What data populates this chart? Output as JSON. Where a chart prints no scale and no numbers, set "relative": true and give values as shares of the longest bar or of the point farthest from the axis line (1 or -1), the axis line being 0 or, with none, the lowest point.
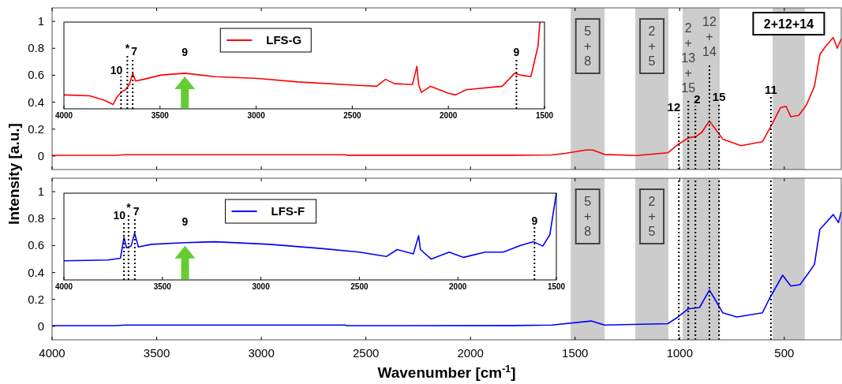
{
  "chart_data": [
    {
      "type": "line",
      "ylabel": "Intensity [a.u.]",
      "xlim": [
        4000,
        228
      ],
      "xticks": [
        4000,
        3500,
        3000,
        2500,
        2000,
        1500,
        1000,
        500
      ],
      "ylim": [
        -0.1,
        1.1
      ],
      "yticks": [
        0,
        0.2,
        0.4,
        0.6,
        0.8,
        1
      ],
      "tick_labels": "y",
      "grid": false,
      "legend": false,
      "series": [
        {
          "color": "#ff0000",
          "x": [
            4000,
            3700,
            3650,
            2600,
            2590,
            1800,
            1611,
            1547,
            1449,
            1415,
            1359,
            1208,
            1057,
            1008,
            959,
            922,
            895,
            858,
            831,
            794,
            707,
            605,
            567,
            518,
            492,
            469,
            431,
            394,
            356,
            330,
            304,
            266,
            247,
            228
          ],
          "values": [
            0.005,
            0.005,
            0.01,
            0.01,
            0.006,
            0.006,
            0.008,
            0.02,
            0.045,
            0.045,
            0.012,
            0.004,
            0.024,
            0.086,
            0.135,
            0.145,
            0.175,
            0.26,
            0.204,
            0.126,
            0.077,
            0.106,
            0.213,
            0.36,
            0.37,
            0.292,
            0.302,
            0.38,
            0.518,
            0.753,
            0.812,
            0.88,
            0.8,
            0.87
          ]
        }
      ],
      "bands": [
        {
          "axis": "x",
          "from": 1521,
          "to": 1359,
          "label": "5+8",
          "color": "#cccccc"
        },
        {
          "axis": "x",
          "from": 1212,
          "to": 1054,
          "label": "2+5",
          "color": "#cccccc"
        },
        {
          "axis": "x",
          "from": 986,
          "to": 809,
          "label": null,
          "color": "#cccccc"
        },
        {
          "axis": "x",
          "from": 556,
          "to": 402,
          "label": "2+12+14",
          "color": "#cccccc"
        }
      ],
      "ref_lines": [
        {
          "axis": "x",
          "value": 1004,
          "line_style": "dotted"
        },
        {
          "axis": "x",
          "value": 959,
          "line_style": "dotted"
        },
        {
          "axis": "x",
          "value": 925,
          "line_style": "dotted"
        },
        {
          "axis": "x",
          "value": 858,
          "line_style": "dotted"
        },
        {
          "axis": "x",
          "value": 812,
          "line_style": "dotted"
        },
        {
          "axis": "x",
          "value": 564,
          "line_style": "dotted"
        }
      ],
      "annotations": [
        {
          "text": "12",
          "x": 1004,
          "y": 0.08
        },
        {
          "text": "2+13+15",
          "x": 959,
          "y": 0.41
        },
        {
          "text": "2",
          "x": 925,
          "y": 0.14
        },
        {
          "text": "12+14",
          "x": 858,
          "y": 0.68
        },
        {
          "text": "15",
          "x": 812,
          "y": 0.16
        },
        {
          "text": "11",
          "x": 564,
          "y": 0.21
        }
      ]
    },
    {
      "type": "line",
      "relative": true,
      "xlim": [
        4000,
        1500
      ],
      "xticks": [
        4000,
        3500,
        3000,
        2500,
        2000,
        1500
      ],
      "tick_labels": "x",
      "legend": "top",
      "series": [
        {
          "name": "LFS-G",
          "color": "#ff0000",
          "x": [
            4000,
            3866,
            3791,
            3744,
            3726,
            3698,
            3679,
            3660,
            3642,
            3627,
            3586,
            3493,
            3371,
            3213,
            2989,
            2784,
            2466,
            2373,
            2327,
            2280,
            2187,
            2164,
            2155,
            2140,
            2093,
            2000,
            1963,
            1907,
            1720,
            1655,
            1627,
            1571,
            1534,
            1524
          ],
          "values": [
            0.16,
            0.15,
            0.1,
            0.05,
            0.13,
            0.2,
            0.22,
            0.28,
            0.41,
            0.32,
            0.34,
            0.39,
            0.41,
            0.37,
            0.35,
            0.31,
            0.27,
            0.26,
            0.34,
            0.29,
            0.28,
            0.49,
            0.28,
            0.19,
            0.26,
            0.18,
            0.16,
            0.22,
            0.26,
            0.41,
            0.39,
            0.37,
            0.72,
            1
          ]
        }
      ],
      "ref_lines": [
        {
          "axis": "x",
          "value": 3703,
          "line_style": "dotted"
        },
        {
          "axis": "x",
          "value": 3670,
          "line_style": "dotted"
        },
        {
          "axis": "x",
          "value": 3642,
          "line_style": "dotted"
        },
        {
          "axis": "x",
          "value": 1646,
          "line_style": "dotted"
        }
      ],
      "annotations": [
        {
          "text": "10",
          "x": 3703,
          "y": 0.19
        },
        {
          "text": "*",
          "x": 3670,
          "y": 0.25
        },
        {
          "text": "7",
          "x": 3642,
          "y": 0.41
        },
        {
          "text": "9",
          "x": 1646,
          "y": 0.4
        },
        {
          "text": "9",
          "x": 3371,
          "y": 0.41
        }
      ]
    },
    {
      "type": "line",
      "xlabel": "Wavenumber [cm$^{-1}$]",
      "xlim": [
        4000,
        228
      ],
      "xticks": [
        4000,
        3500,
        3000,
        2500,
        2000,
        1500,
        1000,
        500
      ],
      "ylim": [
        -0.1,
        1.1
      ],
      "yticks": [
        0,
        0.2,
        0.4,
        0.6,
        0.8,
        1
      ],
      "grid": false,
      "legend": false,
      "series": [
        {
          "color": "#0000ff",
          "x": [
            4000,
            3700,
            3650,
            2600,
            2590,
            1800,
            1611,
            1423,
            1359,
            1057,
            1008,
            959,
            905,
            858,
            831,
            794,
            727,
            605,
            573,
            508,
            469,
            425,
            387,
            356,
            330,
            266,
            241,
            228
          ],
          "values": [
            0.005,
            0.005,
            0.01,
            0.01,
            0.005,
            0.006,
            0.01,
            0.04,
            0.01,
            0.02,
            0.07,
            0.13,
            0.14,
            0.27,
            0.2,
            0.1,
            0.07,
            0.1,
            0.2,
            0.38,
            0.3,
            0.31,
            0.39,
            0.46,
            0.72,
            0.83,
            0.77,
            0.85
          ]
        }
      ],
      "bands": [
        {
          "axis": "x",
          "from": 1521,
          "to": 1359,
          "label": "5+8",
          "color": "#cccccc"
        },
        {
          "axis": "x",
          "from": 1212,
          "to": 1054,
          "label": "2+5",
          "color": "#cccccc"
        },
        {
          "axis": "x",
          "from": 986,
          "to": 809,
          "label": null,
          "color": "#cccccc"
        },
        {
          "axis": "x",
          "from": 556,
          "to": 402,
          "label": null,
          "color": "#cccccc"
        }
      ],
      "ref_lines": [
        {
          "axis": "x",
          "value": 1004,
          "line_style": "dotted"
        },
        {
          "axis": "x",
          "value": 959,
          "line_style": "dotted"
        },
        {
          "axis": "x",
          "value": 925,
          "line_style": "dotted"
        },
        {
          "axis": "x",
          "value": 858,
          "line_style": "dotted"
        },
        {
          "axis": "x",
          "value": 812,
          "line_style": "dotted"
        },
        {
          "axis": "x",
          "value": 564,
          "line_style": "dotted"
        }
      ]
    },
    {
      "type": "line",
      "relative": true,
      "xlim": [
        4000,
        1500
      ],
      "xticks": [
        4000,
        3500,
        3000,
        2500,
        2000,
        1500
      ],
      "tick_labels": "x",
      "legend": "top",
      "series": [
        {
          "name": "LFS-F",
          "color": "#0000ff",
          "x": [
            4000,
            3777,
            3713,
            3695,
            3682,
            3659,
            3641,
            3622,
            3558,
            3385,
            3230,
            2956,
            2682,
            2500,
            2363,
            2308,
            2226,
            2199,
            2190,
            2135,
            2044,
            1971,
            1861,
            1770,
            1679,
            1615,
            1569,
            1533,
            1500
          ],
          "values": [
            0.22,
            0.23,
            0.25,
            0.49,
            0.37,
            0.39,
            0.54,
            0.38,
            0.41,
            0.43,
            0.44,
            0.41,
            0.36,
            0.32,
            0.27,
            0.35,
            0.3,
            0.51,
            0.35,
            0.24,
            0.32,
            0.26,
            0.32,
            0.32,
            0.4,
            0.44,
            0.39,
            0.52,
            1
          ]
        }
      ],
      "ref_lines": [
        {
          "axis": "x",
          "value": 3695,
          "line_style": "dotted"
        },
        {
          "axis": "x",
          "value": 3672,
          "line_style": "dotted"
        },
        {
          "axis": "x",
          "value": 3640,
          "line_style": "dotted"
        },
        {
          "axis": "x",
          "value": 1611,
          "line_style": "dotted"
        }
      ],
      "annotations": [
        {
          "text": "10",
          "x": 3695,
          "y": 0.49
        },
        {
          "text": "*",
          "x": 3672,
          "y": 0.38
        },
        {
          "text": "7",
          "x": 3640,
          "y": 0.54
        },
        {
          "text": "9",
          "x": 1611,
          "y": 0.43
        },
        {
          "text": "9",
          "x": 3385,
          "y": 0.43
        }
      ]
    }
  ]
}
